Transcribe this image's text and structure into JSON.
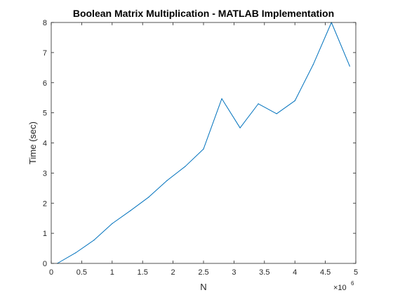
{
  "chart_data": {
    "type": "line",
    "title": "Boolean Matrix Multiplication - MATLAB Implementation",
    "xlabel": "N",
    "ylabel": "Time (sec)",
    "x_exponent_base": "×10",
    "x_exponent_power": "6",
    "xlim": [
      0,
      5000000
    ],
    "ylim": [
      0,
      8
    ],
    "x_ticks": [
      0,
      0.5,
      1,
      1.5,
      2,
      2.5,
      3,
      3.5,
      4,
      4.5,
      5
    ],
    "x_tick_labels": [
      "0",
      "0.5",
      "1",
      "1.5",
      "2",
      "2.5",
      "3",
      "3.5",
      "4",
      "4.5",
      "5"
    ],
    "y_ticks": [
      0,
      1,
      2,
      3,
      4,
      5,
      6,
      7,
      8
    ],
    "y_tick_labels": [
      "0",
      "1",
      "2",
      "3",
      "4",
      "5",
      "6",
      "7",
      "8"
    ],
    "grid": false,
    "line_color": "#0072BD",
    "series": [
      {
        "x": [
          100000,
          400000,
          700000,
          1000000,
          1300000,
          1600000,
          1900000,
          2200000,
          2500000,
          2800000,
          3100000,
          3400000,
          3700000,
          4000000,
          4300000,
          4600000,
          4900000
        ],
        "y": [
          0.0,
          0.35,
          0.77,
          1.32,
          1.75,
          2.2,
          2.75,
          3.22,
          3.8,
          5.47,
          4.5,
          5.3,
          4.97,
          5.4,
          6.6,
          8.0,
          6.55
        ]
      }
    ]
  }
}
